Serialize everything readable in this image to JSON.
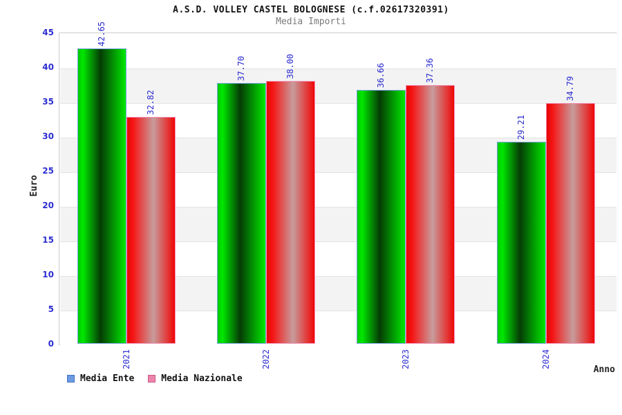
{
  "chart_data": {
    "type": "bar",
    "title": "A.S.D. VOLLEY CASTEL BOLOGNESE (c.f.02617320391)",
    "subtitle": "Media Importi",
    "xlabel": "Anno",
    "ylabel": "Euro",
    "categories": [
      "2021",
      "2022",
      "2023",
      "2024"
    ],
    "series": [
      {
        "name": "Media Ente",
        "values": [
          42.65,
          37.7,
          36.66,
          29.21
        ],
        "gradient": [
          [
            "#00c800",
            "0%"
          ],
          [
            "#00e800",
            "10%"
          ],
          [
            "#053c05",
            "47%"
          ],
          [
            "#00e800",
            "100%"
          ]
        ],
        "bar_border": "#7aa4e0",
        "legend_fill": "#6c9be4",
        "legend_border": "#3f72bd"
      },
      {
        "name": "Media Nazionale",
        "values": [
          32.82,
          38.0,
          37.36,
          34.79
        ],
        "gradient": [
          [
            "#e80404",
            "0%"
          ],
          [
            "#f61414",
            "12%"
          ],
          [
            "#c79c9c",
            "55%"
          ],
          [
            "#f00606",
            "100%"
          ]
        ],
        "bar_border": "#f191b5",
        "legend_fill": "#ee83ac",
        "legend_border": "#c75687"
      }
    ],
    "ylim": [
      0,
      45
    ],
    "ytick_step": 5,
    "grid": true,
    "legend_position": "bottom-left"
  },
  "colors": {
    "tick_label_blue": "#2e2ed2",
    "value_label_blue": "#2a2ad0",
    "grid_line": "#e3e3e3",
    "plot_border": "#cccccc",
    "band_gray": "#f3f3f3",
    "band_white": "#ffffff",
    "subtitle_gray": "#7a7a7a",
    "axis_title_dark": "#222222",
    "title_black": "#111111"
  }
}
